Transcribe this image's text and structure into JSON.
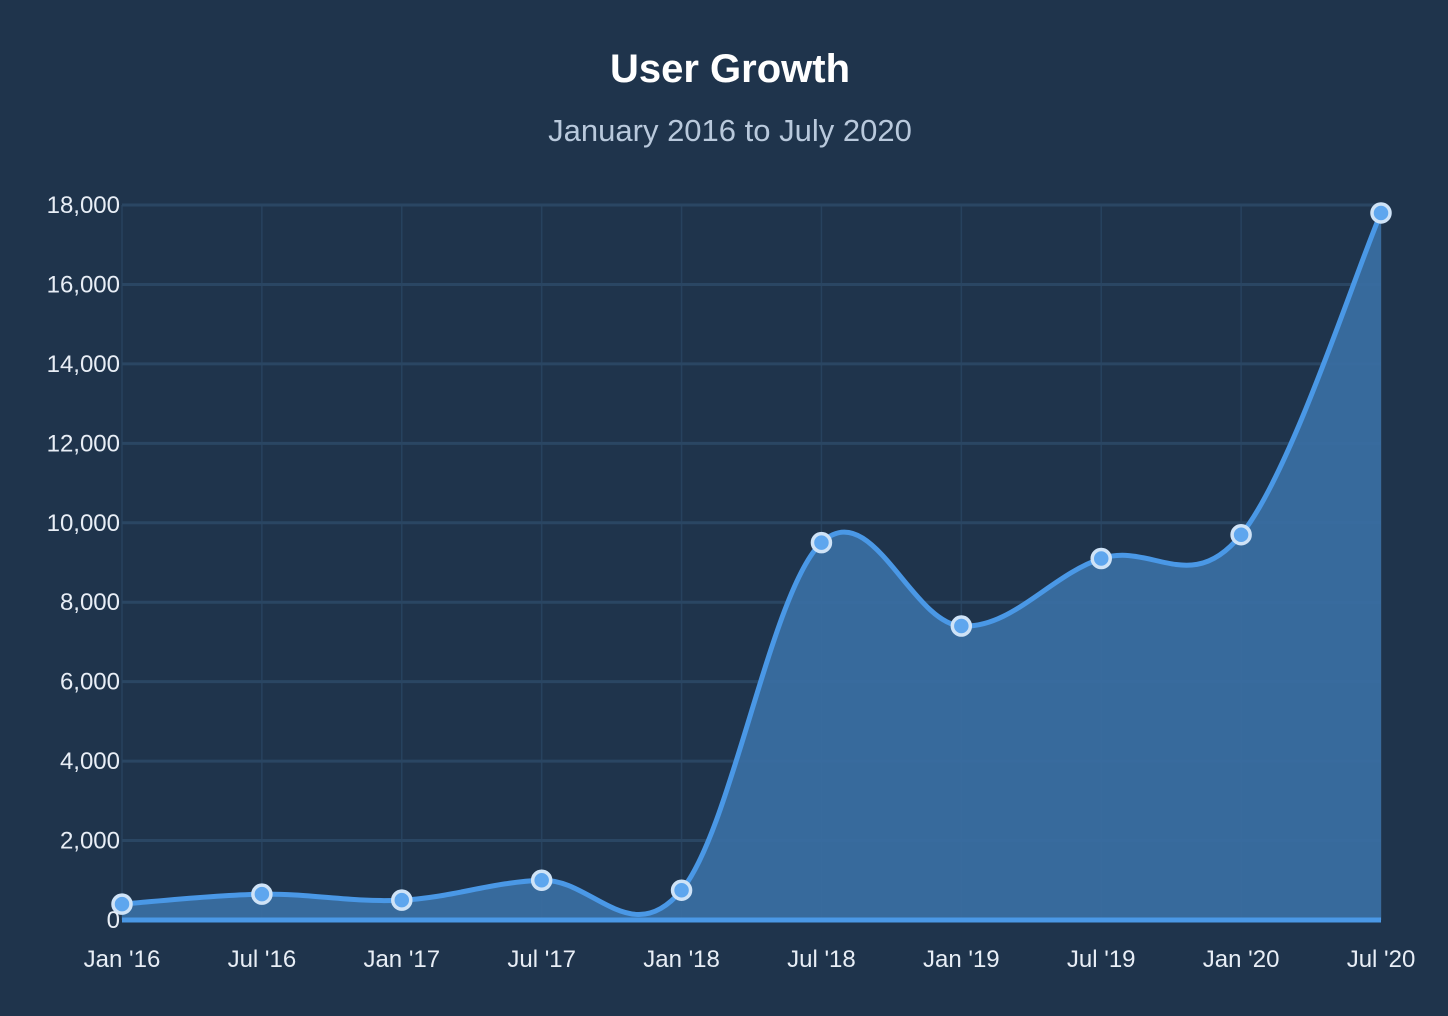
{
  "chart_data": {
    "type": "area",
    "title": "User Growth",
    "subtitle": "January 2016 to July 2020",
    "xlabel": "",
    "ylabel": "",
    "categories": [
      "Jan '16",
      "Jul '16",
      "Jan '17",
      "Jul '17",
      "Jan '18",
      "Jul '18",
      "Jan '19",
      "Jul '19",
      "Jan '20",
      "Jul '20"
    ],
    "series": [
      {
        "values": [
          400,
          650,
          500,
          1000,
          750,
          9500,
          7400,
          9100,
          9700,
          17800
        ]
      }
    ],
    "ylim": [
      0,
      18000
    ],
    "yticks": [
      "0",
      "2,000",
      "4,000",
      "6,000",
      "8,000",
      "10,000",
      "12,000",
      "14,000",
      "16,000",
      "18,000"
    ],
    "grid": true,
    "legend": "none",
    "colors": {
      "background": "#1f344c",
      "line": "#4a98e6",
      "fill": "#3a6fa3",
      "marker_fill": "#5ea6ee",
      "marker_stroke": "#cfe3f7",
      "grid": "#2a4663"
    }
  }
}
